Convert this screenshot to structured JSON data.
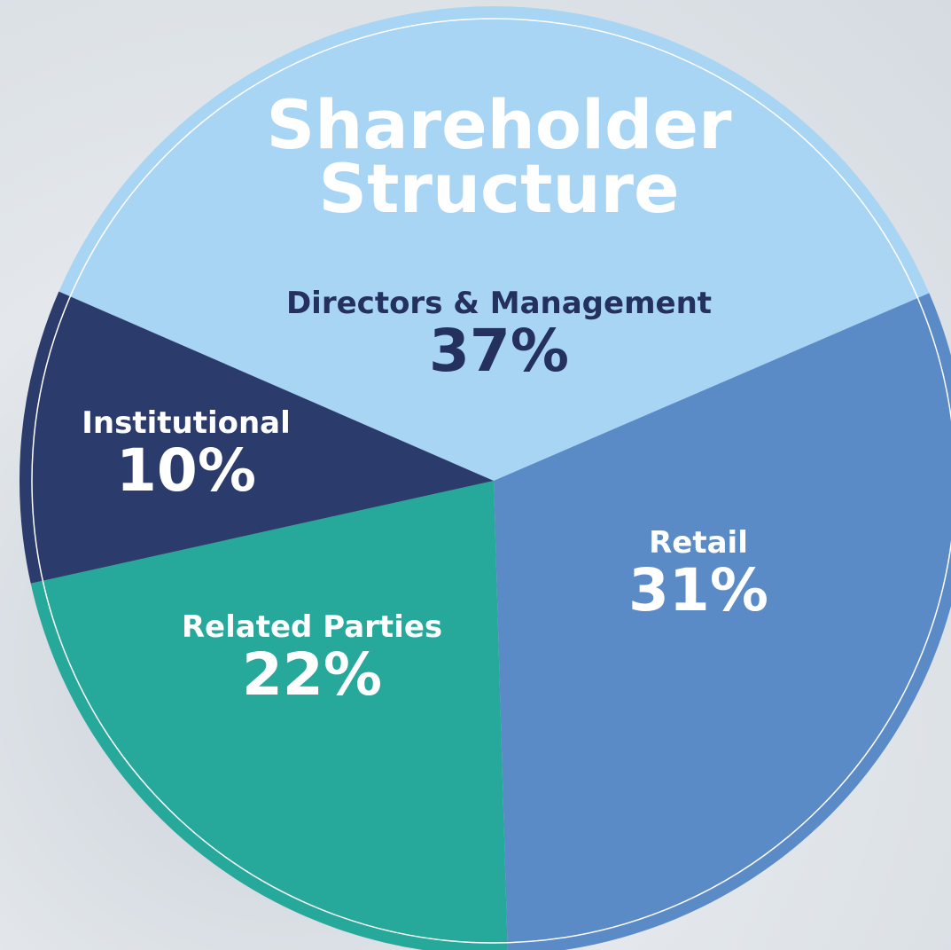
{
  "chart_data": {
    "type": "pie",
    "title": "Shareholder Structure",
    "categories": [
      "Directors & Management",
      "Retail",
      "Related Parties",
      "Institutional"
    ],
    "values": [
      37,
      31,
      22,
      10
    ],
    "value_labels": [
      "37%",
      "31%",
      "22%",
      "10%"
    ],
    "colors": [
      "#a9d5f5",
      "#5a8bc6",
      "#26a89b",
      "#2b3b6b"
    ]
  }
}
